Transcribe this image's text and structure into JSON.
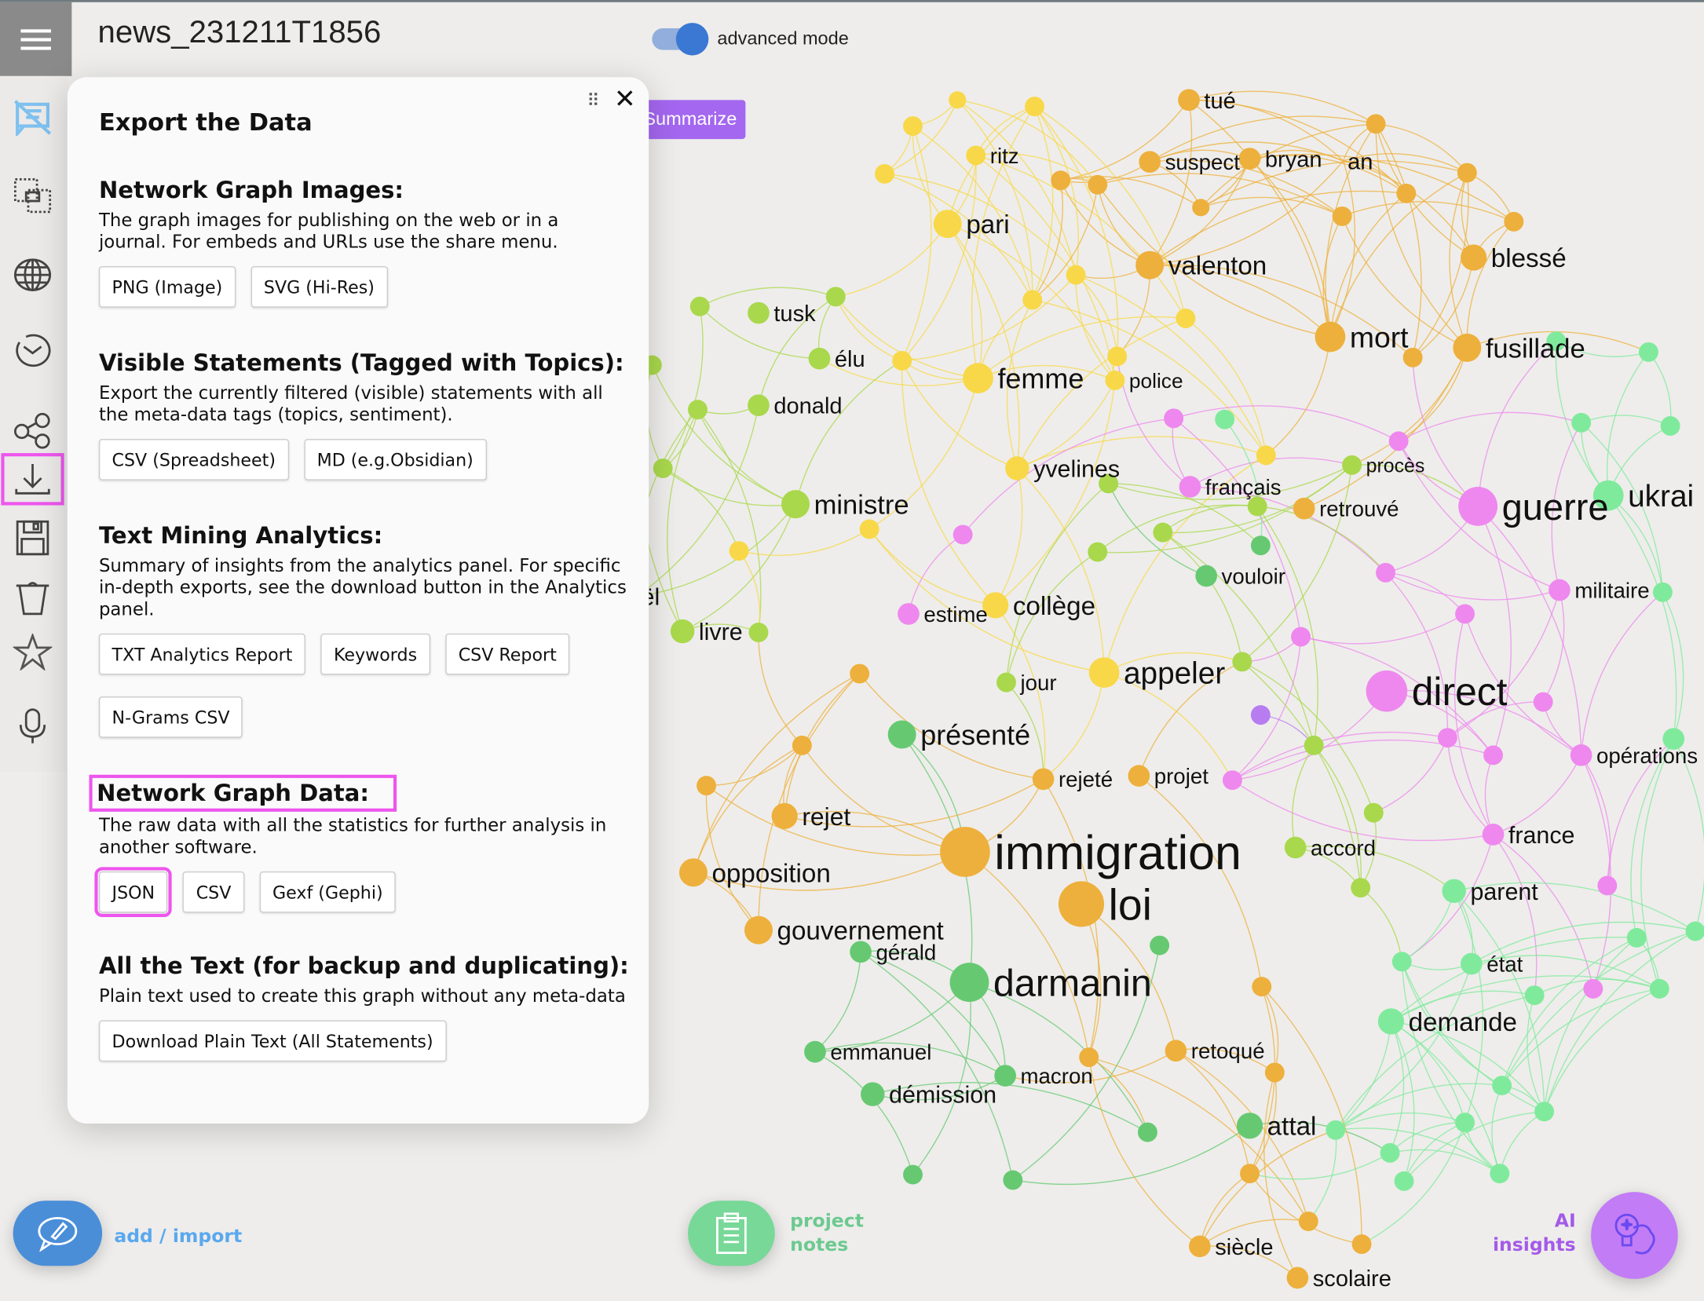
{
  "header": {
    "title": "news_231211T1856",
    "advanced_mode_label": "advanced mode",
    "advanced_mode_on": true,
    "summarize_label": "Summarize"
  },
  "sidebar": {
    "items": [
      {
        "icon": "hide-statements-icon"
      },
      {
        "icon": "select-area-icon"
      },
      {
        "icon": "globe-icon"
      },
      {
        "icon": "history-icon"
      },
      {
        "icon": "share-icon"
      },
      {
        "icon": "download-icon",
        "active": true
      },
      {
        "icon": "save-icon"
      },
      {
        "icon": "trash-icon"
      },
      {
        "icon": "star-icon"
      },
      {
        "icon": "microphone-icon"
      }
    ]
  },
  "export_panel": {
    "title": "Export the Data",
    "sections": [
      {
        "title": "Network Graph Images:",
        "description": "The graph images for publishing on the web or in a journal. For embeds and URLs use the share menu.",
        "buttons": [
          "PNG (Image)",
          "SVG (Hi-Res)"
        ]
      },
      {
        "title": "Visible Statements (Tagged with Topics):",
        "description": "Export the currently filtered (visible) statements with all the meta-data tags (topics, sentiment).",
        "buttons": [
          "CSV (Spreadsheet)",
          "MD (e.g.Obsidian)"
        ]
      },
      {
        "title": "Text Mining Analytics:",
        "description": "Summary of insights from the analytics panel. For specific in-depth exports, see the download button in the Analytics panel.",
        "buttons": [
          "TXT Analytics Report",
          "Keywords",
          "CSV Report",
          "N-Grams CSV"
        ]
      },
      {
        "title": "Network Graph Data:",
        "description": "The raw data with all the statistics for further analysis in another software.",
        "buttons": [
          "JSON",
          "CSV",
          "Gexf (Gephi)"
        ]
      },
      {
        "title": "All the Text (for backup and duplicating):",
        "description": "Plain text used to create this graph without any meta-data",
        "buttons": [
          "Download Plain Text (All Statements)"
        ]
      }
    ]
  },
  "footer": {
    "add_import": "add / import",
    "project_notes": "project notes",
    "ai_insights": "AI insights"
  },
  "colors": {
    "orange": "#eeb03c",
    "yellow": "#f8d848",
    "yellowgreen": "#a9d84c",
    "green": "#66c972",
    "lightgreen": "#80ea9c",
    "pink": "#ee88ee",
    "purple": "#b67cf0",
    "accent": "#a467f0"
  },
  "graph": {
    "nodes": [
      {
        "label": "tué",
        "c": "orange"
      },
      {
        "label": "ritz",
        "c": "yellow"
      },
      {
        "label": "suspect",
        "c": "orange"
      },
      {
        "label": "bryan",
        "c": "orange"
      },
      {
        "label": "an",
        "c": "orange"
      },
      {
        "label": "pari",
        "c": "yellow"
      },
      {
        "label": "valenton",
        "c": "orange"
      },
      {
        "label": "blessé",
        "c": "orange"
      },
      {
        "label": "mort",
        "c": "orange"
      },
      {
        "label": "fusillade",
        "c": "orange"
      },
      {
        "label": "femme",
        "c": "yellow"
      },
      {
        "label": "police",
        "c": "yellow"
      },
      {
        "label": "tusk",
        "c": "yellowgreen"
      },
      {
        "label": "élu",
        "c": "yellowgreen"
      },
      {
        "label": "donald",
        "c": "yellowgreen"
      },
      {
        "label": "ministre",
        "c": "yellowgreen"
      },
      {
        "label": "livre",
        "c": "yellowgreen"
      },
      {
        "label": "yvelines",
        "c": "yellow"
      },
      {
        "label": "français",
        "c": "pink"
      },
      {
        "label": "procès",
        "c": "yellowgreen"
      },
      {
        "label": "retrouvé",
        "c": "orange"
      },
      {
        "label": "guerre",
        "c": "pink"
      },
      {
        "label": "ukrai",
        "c": "lightgreen"
      },
      {
        "label": "vouloir",
        "c": "green"
      },
      {
        "label": "militaire",
        "c": "pink"
      },
      {
        "label": "estime",
        "c": "pink"
      },
      {
        "label": "collège",
        "c": "yellow"
      },
      {
        "label": "jour",
        "c": "yellowgreen"
      },
      {
        "label": "appeler",
        "c": "yellow"
      },
      {
        "label": "direct",
        "c": "pink"
      },
      {
        "label": "présenté",
        "c": "green"
      },
      {
        "label": "opérations",
        "c": "pink"
      },
      {
        "label": "rejeté",
        "c": "orange"
      },
      {
        "label": "projet",
        "c": "orange"
      },
      {
        "label": "rejet",
        "c": "orange"
      },
      {
        "label": "immigration",
        "c": "orange"
      },
      {
        "label": "accord",
        "c": "yellowgreen"
      },
      {
        "label": "france",
        "c": "pink"
      },
      {
        "label": "opposition",
        "c": "orange"
      },
      {
        "label": "loi",
        "c": "orange"
      },
      {
        "label": "parent",
        "c": "lightgreen"
      },
      {
        "label": "gouvernement",
        "c": "orange"
      },
      {
        "label": "gérald",
        "c": "green"
      },
      {
        "label": "darmanin",
        "c": "green"
      },
      {
        "label": "état",
        "c": "lightgreen"
      },
      {
        "label": "demande",
        "c": "lightgreen"
      },
      {
        "label": "emmanuel",
        "c": "green"
      },
      {
        "label": "retoqué",
        "c": "orange"
      },
      {
        "label": "macron",
        "c": "green"
      },
      {
        "label": "démission",
        "c": "green"
      },
      {
        "label": "attal",
        "c": "green"
      },
      {
        "label": "siècle",
        "c": "orange"
      },
      {
        "label": "scolaire",
        "c": "orange"
      },
      {
        "label": "ël",
        "c": "yellowgreen"
      }
    ]
  }
}
